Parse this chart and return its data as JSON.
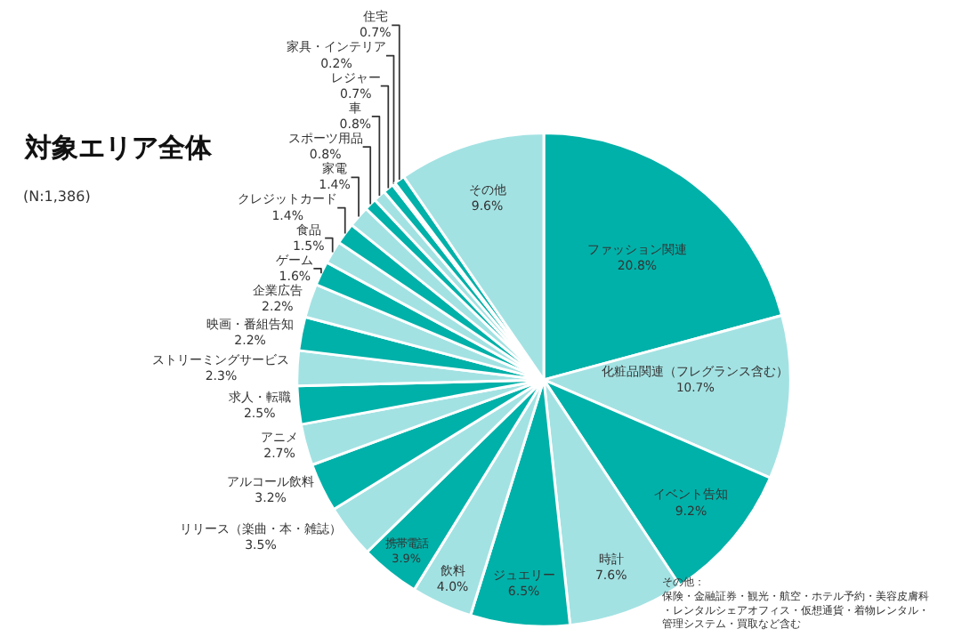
{
  "chart_data": {
    "type": "pie",
    "title": "対象エリア全体",
    "subtitle": "(N:1,386)",
    "categories": [
      "ファッション関連",
      "化粧品関連（フレグランス含む）",
      "イベント告知",
      "時計",
      "ジュエリー",
      "飲料",
      "携帯電話",
      "リリース（楽曲・本・雑誌）",
      "アルコール飲料",
      "アニメ",
      "求人・転職",
      "ストリーミングサービス",
      "映画・番組告知",
      "企業広告",
      "ゲーム",
      "食品",
      "クレジットカード",
      "家電",
      "スポーツ用品",
      "車",
      "レジャー",
      "家具・インテリア",
      "住宅",
      "その他"
    ],
    "values": [
      20.8,
      10.7,
      9.2,
      7.6,
      6.5,
      4.0,
      3.9,
      3.5,
      3.2,
      2.7,
      2.5,
      2.3,
      2.2,
      2.2,
      1.6,
      1.5,
      1.4,
      1.4,
      0.8,
      0.8,
      0.7,
      0.2,
      0.7,
      9.6
    ],
    "value_labels": [
      "20.8%",
      "10.7%",
      "9.2%",
      "7.6%",
      "6.5%",
      "4.0%",
      "3.9%",
      "3.5%",
      "3.2%",
      "2.7%",
      "2.5%",
      "2.3%",
      "2.2%",
      "2.2%",
      "1.6%",
      "1.5%",
      "1.4%",
      "1.4%",
      "0.8%",
      "0.8%",
      "0.7%",
      "0.2%",
      "0.7%",
      "9.6%"
    ],
    "colors": [
      "#00b1a9",
      "#a3e2e3",
      "#00b1a9",
      "#a3e2e3",
      "#00b1a9",
      "#a3e2e3",
      "#00b1a9",
      "#a3e2e3",
      "#00b1a9",
      "#a3e2e3",
      "#00b1a9",
      "#a3e2e3",
      "#00b1a9",
      "#a3e2e3",
      "#00b1a9",
      "#a3e2e3",
      "#00b1a9",
      "#a3e2e3",
      "#00b1a9",
      "#a3e2e3",
      "#00b1a9",
      "#a3e2e3",
      "#00b1a9",
      "#a3e2e3"
    ],
    "annotations": [
      "その他：",
      "保険・金融証券・観光・航空・ホテル予約・美容皮膚科・レンタルシェアオフィス・仮想通貨・着物レンタル・管理システム・買取など含む"
    ],
    "legend": false
  }
}
